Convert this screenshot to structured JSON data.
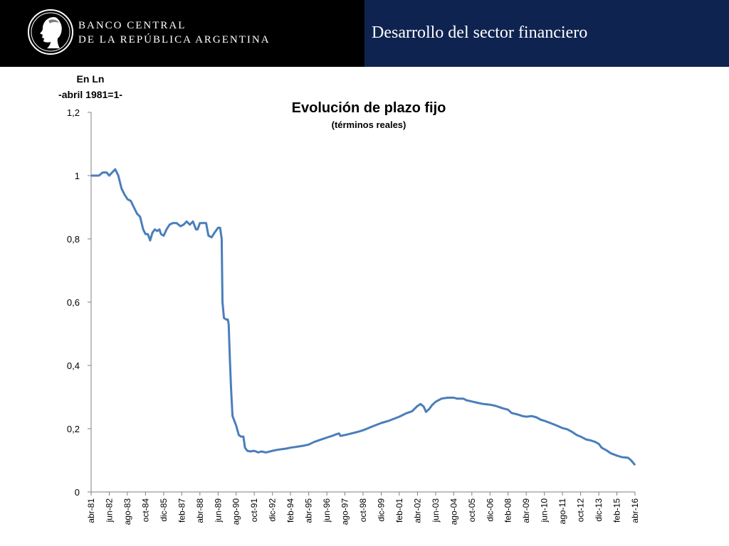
{
  "header": {
    "bank_name_line1": "BANCO CENTRAL",
    "bank_name_line2": "DE LA REPÚBLICA ARGENTINA",
    "section_title": "Desarrollo del sector financiero",
    "logo_icon": "republic-head-medallion-icon",
    "left_bg": "#000000",
    "right_bg": "#0f2350"
  },
  "chart_data": {
    "type": "line",
    "title": "Evolución de plazo fijo",
    "subtitle": "(términos reales)",
    "ylabel_line1": "En Ln",
    "ylabel_line2": "-abril 1981=1-",
    "ylim": [
      0,
      1.2
    ],
    "yticks": [
      "0",
      "0,2",
      "0,4",
      "0,6",
      "0,8",
      "1",
      "1,2"
    ],
    "grid": false,
    "line_color": "#4a7ebb",
    "x_start": "abr-81",
    "x_end": "abr-16",
    "xticks": [
      {
        "label": "abr-81",
        "t": 1981.25
      },
      {
        "label": "jun-82",
        "t": 1982.42
      },
      {
        "label": "ago-83",
        "t": 1983.58
      },
      {
        "label": "oct-84",
        "t": 1984.75
      },
      {
        "label": "dic-85",
        "t": 1985.92
      },
      {
        "label": "feb-87",
        "t": 1987.08
      },
      {
        "label": "abr-88",
        "t": 1988.25
      },
      {
        "label": "jun-89",
        "t": 1989.42
      },
      {
        "label": "ago-90",
        "t": 1990.58
      },
      {
        "label": "oct-91",
        "t": 1991.75
      },
      {
        "label": "dic-92",
        "t": 1992.92
      },
      {
        "label": "feb-94",
        "t": 1994.08
      },
      {
        "label": "abr-95",
        "t": 1995.25
      },
      {
        "label": "jun-96",
        "t": 1996.42
      },
      {
        "label": "ago-97",
        "t": 1997.58
      },
      {
        "label": "oct-98",
        "t": 1998.75
      },
      {
        "label": "dic-99",
        "t": 1999.92
      },
      {
        "label": "feb-01",
        "t": 2001.08
      },
      {
        "label": "abr-02",
        "t": 2002.25
      },
      {
        "label": "jun-03",
        "t": 2003.42
      },
      {
        "label": "ago-04",
        "t": 2004.58
      },
      {
        "label": "oct-05",
        "t": 2005.75
      },
      {
        "label": "dic-06",
        "t": 2006.92
      },
      {
        "label": "feb-08",
        "t": 2008.08
      },
      {
        "label": "abr-09",
        "t": 2009.25
      },
      {
        "label": "jun-10",
        "t": 2010.42
      },
      {
        "label": "ago-11",
        "t": 2011.58
      },
      {
        "label": "oct-12",
        "t": 2012.75
      },
      {
        "label": "dic-13",
        "t": 2013.92
      },
      {
        "label": "feb-15",
        "t": 2015.08
      },
      {
        "label": "abr-16",
        "t": 2016.25
      }
    ],
    "series": [
      {
        "points": [
          [
            1981.25,
            1.0
          ],
          [
            1981.5,
            1.0
          ],
          [
            1981.75,
            1.0
          ],
          [
            1982.0,
            1.01
          ],
          [
            1982.25,
            1.01
          ],
          [
            1982.42,
            1.0
          ],
          [
            1982.6,
            1.01
          ],
          [
            1982.8,
            1.02
          ],
          [
            1983.0,
            1.0
          ],
          [
            1983.2,
            0.96
          ],
          [
            1983.4,
            0.94
          ],
          [
            1983.6,
            0.925
          ],
          [
            1983.8,
            0.92
          ],
          [
            1984.0,
            0.9
          ],
          [
            1984.2,
            0.88
          ],
          [
            1984.4,
            0.87
          ],
          [
            1984.6,
            0.83
          ],
          [
            1984.75,
            0.815
          ],
          [
            1984.9,
            0.815
          ],
          [
            1985.05,
            0.795
          ],
          [
            1985.2,
            0.82
          ],
          [
            1985.35,
            0.83
          ],
          [
            1985.5,
            0.825
          ],
          [
            1985.65,
            0.83
          ],
          [
            1985.75,
            0.815
          ],
          [
            1985.92,
            0.81
          ],
          [
            1986.1,
            0.83
          ],
          [
            1986.3,
            0.845
          ],
          [
            1986.5,
            0.85
          ],
          [
            1986.75,
            0.85
          ],
          [
            1987.0,
            0.84
          ],
          [
            1987.2,
            0.845
          ],
          [
            1987.4,
            0.855
          ],
          [
            1987.6,
            0.845
          ],
          [
            1987.8,
            0.855
          ],
          [
            1988.0,
            0.83
          ],
          [
            1988.1,
            0.83
          ],
          [
            1988.25,
            0.85
          ],
          [
            1988.45,
            0.85
          ],
          [
            1988.65,
            0.85
          ],
          [
            1988.8,
            0.81
          ],
          [
            1989.0,
            0.805
          ],
          [
            1989.2,
            0.82
          ],
          [
            1989.42,
            0.835
          ],
          [
            1989.55,
            0.835
          ],
          [
            1989.65,
            0.8
          ],
          [
            1989.7,
            0.6
          ],
          [
            1989.8,
            0.55
          ],
          [
            1989.95,
            0.545
          ],
          [
            1990.05,
            0.545
          ],
          [
            1990.1,
            0.53
          ],
          [
            1990.18,
            0.42
          ],
          [
            1990.25,
            0.33
          ],
          [
            1990.35,
            0.24
          ],
          [
            1990.58,
            0.21
          ],
          [
            1990.75,
            0.18
          ],
          [
            1990.9,
            0.175
          ],
          [
            1991.05,
            0.175
          ],
          [
            1991.15,
            0.14
          ],
          [
            1991.3,
            0.13
          ],
          [
            1991.5,
            0.128
          ],
          [
            1991.75,
            0.13
          ],
          [
            1992.0,
            0.125
          ],
          [
            1992.2,
            0.128
          ],
          [
            1992.5,
            0.125
          ],
          [
            1992.92,
            0.13
          ],
          [
            1993.2,
            0.133
          ],
          [
            1993.5,
            0.135
          ],
          [
            1993.8,
            0.137
          ],
          [
            1994.08,
            0.14
          ],
          [
            1994.5,
            0.143
          ],
          [
            1995.0,
            0.147
          ],
          [
            1995.25,
            0.15
          ],
          [
            1995.6,
            0.158
          ],
          [
            1996.0,
            0.165
          ],
          [
            1996.42,
            0.172
          ],
          [
            1996.8,
            0.178
          ],
          [
            1997.0,
            0.182
          ],
          [
            1997.2,
            0.185
          ],
          [
            1997.3,
            0.177
          ],
          [
            1997.58,
            0.18
          ],
          [
            1998.0,
            0.185
          ],
          [
            1998.4,
            0.19
          ],
          [
            1998.75,
            0.195
          ],
          [
            1999.0,
            0.2
          ],
          [
            1999.4,
            0.208
          ],
          [
            1999.92,
            0.218
          ],
          [
            2000.4,
            0.225
          ],
          [
            2001.08,
            0.238
          ],
          [
            2001.5,
            0.248
          ],
          [
            2001.9,
            0.255
          ],
          [
            2002.25,
            0.272
          ],
          [
            2002.45,
            0.278
          ],
          [
            2002.65,
            0.27
          ],
          [
            2002.8,
            0.253
          ],
          [
            2003.0,
            0.262
          ],
          [
            2003.2,
            0.275
          ],
          [
            2003.42,
            0.285
          ],
          [
            2003.8,
            0.295
          ],
          [
            2004.2,
            0.298
          ],
          [
            2004.58,
            0.298
          ],
          [
            2004.8,
            0.295
          ],
          [
            2005.2,
            0.295
          ],
          [
            2005.4,
            0.29
          ],
          [
            2005.75,
            0.286
          ],
          [
            2006.1,
            0.282
          ],
          [
            2006.5,
            0.278
          ],
          [
            2006.92,
            0.276
          ],
          [
            2007.3,
            0.272
          ],
          [
            2007.7,
            0.265
          ],
          [
            2008.08,
            0.26
          ],
          [
            2008.3,
            0.25
          ],
          [
            2008.7,
            0.245
          ],
          [
            2009.0,
            0.24
          ],
          [
            2009.25,
            0.238
          ],
          [
            2009.6,
            0.24
          ],
          [
            2009.9,
            0.236
          ],
          [
            2010.2,
            0.228
          ],
          [
            2010.42,
            0.225
          ],
          [
            2010.8,
            0.218
          ],
          [
            2011.2,
            0.21
          ],
          [
            2011.58,
            0.202
          ],
          [
            2011.9,
            0.198
          ],
          [
            2012.2,
            0.19
          ],
          [
            2012.5,
            0.18
          ],
          [
            2012.75,
            0.175
          ],
          [
            2013.1,
            0.166
          ],
          [
            2013.4,
            0.163
          ],
          [
            2013.7,
            0.158
          ],
          [
            2013.92,
            0.152
          ],
          [
            2014.1,
            0.14
          ],
          [
            2014.4,
            0.132
          ],
          [
            2014.7,
            0.122
          ],
          [
            2015.08,
            0.115
          ],
          [
            2015.4,
            0.11
          ],
          [
            2015.8,
            0.108
          ],
          [
            2016.0,
            0.1
          ],
          [
            2016.25,
            0.085
          ]
        ]
      }
    ]
  }
}
